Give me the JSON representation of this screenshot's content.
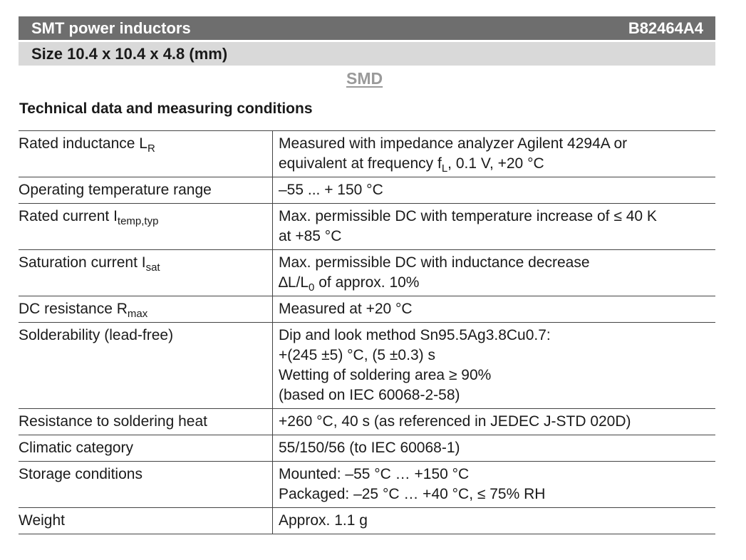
{
  "header": {
    "title": "SMT power inductors",
    "code": "B82464A4"
  },
  "size_bar": {
    "label": "Size 10.4 x 10.4 x 4.8 (mm)"
  },
  "smd_label": "SMD",
  "section_heading": "Technical data and measuring conditions",
  "rows": [
    {
      "param": "Rated inductance L",
      "param_sub": "R",
      "lines": [
        "Measured with impedance analyzer Agilent 4294A or"
      ],
      "line2_pre": "equivalent at frequency f",
      "line2_sub": "L",
      "line2_post": ",  0.1 V, +20 °C"
    },
    {
      "param": "Operating temperature range",
      "lines": [
        "–55 ... + 150 °C"
      ]
    },
    {
      "param": "Rated current I",
      "param_sub": "temp,typ",
      "lines": [
        "Max. permissible DC with temperature increase of ≤ 40 K",
        "at +85 °C"
      ]
    },
    {
      "param": "Saturation current I",
      "param_sub": "sat",
      "lines": [
        "Max. permissible DC with inductance decrease"
      ],
      "line2_pre": "∆L/L",
      "line2_sub": "0",
      "line2_post": " of approx. 10%"
    },
    {
      "param": "DC resistance R",
      "param_sub": "max",
      "lines": [
        "Measured at +20 °C"
      ]
    },
    {
      "param": "Solderability (lead-free)",
      "lines": [
        "Dip and look method Sn95.5Ag3.8Cu0.7:",
        "+(245 ±5) °C, (5 ±0.3) s",
        "Wetting of soldering area ≥ 90%",
        "(based on IEC 60068-2-58)"
      ]
    },
    {
      "param": "Resistance to soldering heat",
      "lines": [
        "+260 °C, 40 s (as referenced in JEDEC J-STD 020D)"
      ]
    },
    {
      "param": "Climatic category",
      "lines": [
        "55/150/56 (to IEC 60068-1)"
      ]
    },
    {
      "param": "Storage conditions",
      "lines": [
        "Mounted:   –55 °C … +150 °C",
        "Packaged: –25 °C … +40 °C,  ≤ 75% RH"
      ]
    },
    {
      "param": "Weight",
      "lines": [
        "Approx. 1.1 g"
      ]
    }
  ]
}
